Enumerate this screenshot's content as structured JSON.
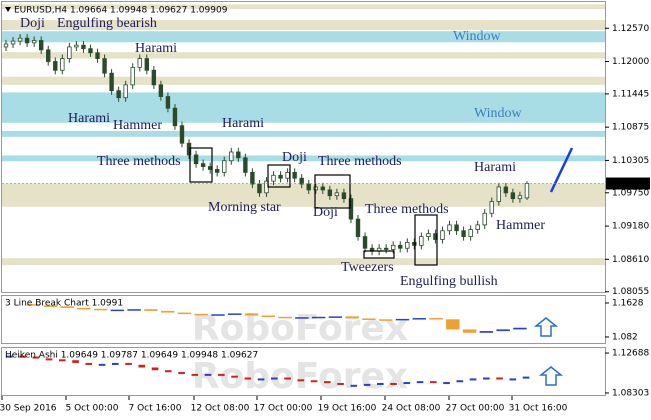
{
  "chart_data": {
    "type": "candlestick",
    "title": "EURUSD,H4 1.09664 1.09948 1.09627 1.09909",
    "ylim": [
      1.0805,
      1.1302
    ],
    "yticks": [
      {
        "value": 1.1257,
        "label": "1.12570"
      },
      {
        "value": 1.12,
        "label": "1.12000"
      },
      1.11445,
      1.10875,
      1.10305,
      {
        "value": 1.0975,
        "label": "1.09750"
      },
      {
        "value": 1.0918,
        "label": "1.09180"
      },
      {
        "value": 1.0861,
        "label": "1.08610"
      },
      1.08055
    ],
    "last_price_label": "1.09909",
    "categories": [
      "30 Sep 2016",
      "5 Oct 00:00",
      "7 Oct 16:00",
      "12 Oct 08:00",
      "17 Oct 00:00",
      "19 Oct 16:00",
      "24 Oct 08:00",
      "27 Oct 00:00",
      "31 Oct 16:00"
    ],
    "open": [
      1.1225,
      1.123,
      1.1235,
      1.124,
      1.1232,
      1.1236,
      1.122,
      1.12,
      1.1185,
      1.1205,
      1.1225,
      1.1228,
      1.1222,
      1.1215,
      1.1205,
      1.118,
      1.115,
      1.1138,
      1.116,
      1.119,
      1.1205,
      1.1185,
      1.116,
      1.114,
      1.112,
      1.109,
      1.106,
      1.104,
      1.1025,
      1.102,
      1.1015,
      1.101,
      1.103,
      1.1045,
      1.1035,
      1.101,
      1.099,
      1.0975,
      1.0995,
      1.1005,
      1.1,
      1.101,
      1.1,
      1.099,
      1.098,
      1.0985,
      1.098,
      1.097,
      1.0975,
      1.0965,
      1.093,
      1.09,
      1.088,
      1.0875,
      1.088,
      1.0878,
      1.0885,
      1.088,
      1.089,
      1.0885,
      1.09,
      1.0905,
      1.0895,
      1.091,
      1.092,
      1.091,
      1.09,
      1.0912,
      1.092,
      1.094,
      1.096,
      1.0985,
      1.0975,
      1.0965,
      1.09664
    ],
    "high": [
      1.1237,
      1.1242,
      1.1247,
      1.1247,
      1.1243,
      1.1243,
      1.1227,
      1.1207,
      1.1212,
      1.1232,
      1.1235,
      1.1235,
      1.1229,
      1.1222,
      1.1212,
      1.1187,
      1.1157,
      1.1167,
      1.1197,
      1.1212,
      1.1212,
      1.1192,
      1.1167,
      1.1147,
      1.1127,
      1.1097,
      1.1067,
      1.1047,
      1.1032,
      1.1027,
      1.1022,
      1.1037,
      1.1052,
      1.1052,
      1.1042,
      1.1017,
      1.0997,
      1.1002,
      1.1012,
      1.1012,
      1.1017,
      1.1017,
      1.1007,
      1.0997,
      1.0992,
      1.0992,
      1.0987,
      1.0982,
      1.0982,
      1.0972,
      1.0937,
      1.0907,
      1.0887,
      1.0887,
      1.0887,
      1.0892,
      1.0892,
      1.0897,
      1.0897,
      1.0907,
      1.0912,
      1.0912,
      1.0917,
      1.0927,
      1.0927,
      1.0917,
      1.0919,
      1.0927,
      1.0947,
      1.0967,
      1.0992,
      1.0992,
      1.0982,
      1.0977,
      1.09948
    ],
    "low": [
      1.1218,
      1.1223,
      1.1228,
      1.1225,
      1.1225,
      1.1213,
      1.1193,
      1.1178,
      1.1178,
      1.1198,
      1.1218,
      1.1215,
      1.1208,
      1.1198,
      1.1173,
      1.1143,
      1.1131,
      1.1131,
      1.1153,
      1.1183,
      1.1178,
      1.1153,
      1.1133,
      1.1113,
      1.1083,
      1.1053,
      1.1033,
      1.1018,
      1.1013,
      1.1008,
      1.1003,
      1.1003,
      1.1023,
      1.1028,
      1.1003,
      1.0983,
      1.0968,
      1.0968,
      1.0988,
      1.0993,
      1.0993,
      1.0993,
      1.0983,
      1.0973,
      1.0973,
      1.0973,
      1.0963,
      1.0963,
      1.0958,
      1.0923,
      1.0893,
      1.0873,
      1.0868,
      1.0868,
      1.0871,
      1.0871,
      1.0873,
      1.0873,
      1.0878,
      1.0878,
      1.0893,
      1.0888,
      1.0888,
      1.0903,
      1.0903,
      1.0893,
      1.0893,
      1.0905,
      1.0913,
      1.0933,
      1.0953,
      1.0968,
      1.0958,
      1.0958,
      1.09627
    ],
    "close": [
      1.123,
      1.1235,
      1.124,
      1.1232,
      1.1236,
      1.122,
      1.12,
      1.1185,
      1.1205,
      1.1225,
      1.1228,
      1.1222,
      1.1215,
      1.1205,
      1.118,
      1.115,
      1.1138,
      1.116,
      1.119,
      1.1205,
      1.1185,
      1.116,
      1.114,
      1.112,
      1.109,
      1.106,
      1.104,
      1.1025,
      1.102,
      1.1015,
      1.101,
      1.103,
      1.1045,
      1.1035,
      1.101,
      1.099,
      1.0975,
      1.0995,
      1.1005,
      1.1,
      1.101,
      1.1,
      1.099,
      1.098,
      1.0985,
      1.098,
      1.097,
      1.0975,
      1.0965,
      1.093,
      1.09,
      1.088,
      1.0875,
      1.088,
      1.0878,
      1.0885,
      1.088,
      1.089,
      1.0885,
      1.09,
      1.0905,
      1.0895,
      1.091,
      1.092,
      1.091,
      1.09,
      1.0912,
      1.092,
      1.094,
      1.096,
      1.0985,
      1.0975,
      1.0965,
      1.097,
      1.09909
    ],
    "up_color": "#ffffff",
    "down_color": "#2b4a2b",
    "wick_color": "#2b4a2b",
    "zones": [
      {
        "low": 1.129,
        "high": 1.1298,
        "color": "#e6e2c8"
      },
      {
        "low": 1.1254,
        "high": 1.1271,
        "color": "#e6e2c8"
      },
      {
        "low": 1.1233,
        "high": 1.1252,
        "color": "#a9dde5"
      },
      {
        "low": 1.1205,
        "high": 1.1216,
        "color": "#e6e2c8"
      },
      {
        "low": 1.116,
        "high": 1.1174,
        "color": "#e6e2c8"
      },
      {
        "low": 1.1095,
        "high": 1.1147,
        "color": "#a9dde5"
      },
      {
        "low": 1.1071,
        "high": 1.1081,
        "color": "#a9dde5"
      },
      {
        "low": 1.1029,
        "high": 1.1039,
        "color": "#a9dde5"
      },
      {
        "low": 1.0951,
        "high": 1.0991,
        "color": "#e6e2c8"
      },
      {
        "low": 1.0851,
        "high": 1.0863,
        "color": "#e6e2c8"
      }
    ],
    "annotations": [
      "Doji",
      "Engulfing bearish",
      "Harami",
      "Harami",
      "Hammer",
      "Harami",
      "Three methods",
      "Doji",
      "Three methods",
      "Morning star",
      "Doji",
      "Three methods",
      "Harami",
      "Hammer",
      "Tweezers",
      "Engulfing bullish"
    ],
    "windows": [
      "Window",
      "Window"
    ],
    "watermark": "RoboForex",
    "panels": [
      {
        "type": "line-break",
        "title": "3 Line Break Chart 1.0991",
        "ylim": [
          1.0677,
          1.1794
        ],
        "yticks": [
          1.1628,
          1.082
        ],
        "up_color": "#2a3fd0",
        "down_color": "#f0a030",
        "values": [
          1.16,
          1.157,
          1.155,
          1.151,
          1.149,
          1.146,
          1.147,
          1.148,
          1.144,
          1.14,
          1.137,
          1.135,
          1.136,
          1.138,
          1.133,
          1.13,
          1.128,
          1.129,
          1.13,
          1.131,
          1.126,
          1.124,
          1.122,
          1.125,
          1.127,
          1.124,
          1.1,
          1.092,
          1.096,
          1.1,
          1.104
        ]
      },
      {
        "type": "heiken-ashi",
        "title": "Heiken Ashi 1.09649 1.09787 1.09649 1.09948 1.09627",
        "ylim": [
          1.0808,
          1.1324
        ],
        "yticks": [
          1.12688,
          1.08303
        ],
        "up_color": "#2a3fd0",
        "down_color": "#d02020",
        "values": [
          1.124,
          1.123,
          1.121,
          1.12,
          1.119,
          1.116,
          1.114,
          1.115,
          1.116,
          1.114,
          1.111,
          1.108,
          1.106,
          1.104,
          1.103,
          1.104,
          1.102,
          1.1,
          1.098,
          1.099,
          1.1,
          1.098,
          1.097,
          1.096,
          1.094,
          1.092,
          1.092,
          1.093,
          1.094,
          1.093,
          1.095,
          1.096,
          1.094,
          1.095,
          1.097,
          1.099,
          1.1,
          1.098,
          1.099,
          1.101
        ]
      }
    ]
  }
}
